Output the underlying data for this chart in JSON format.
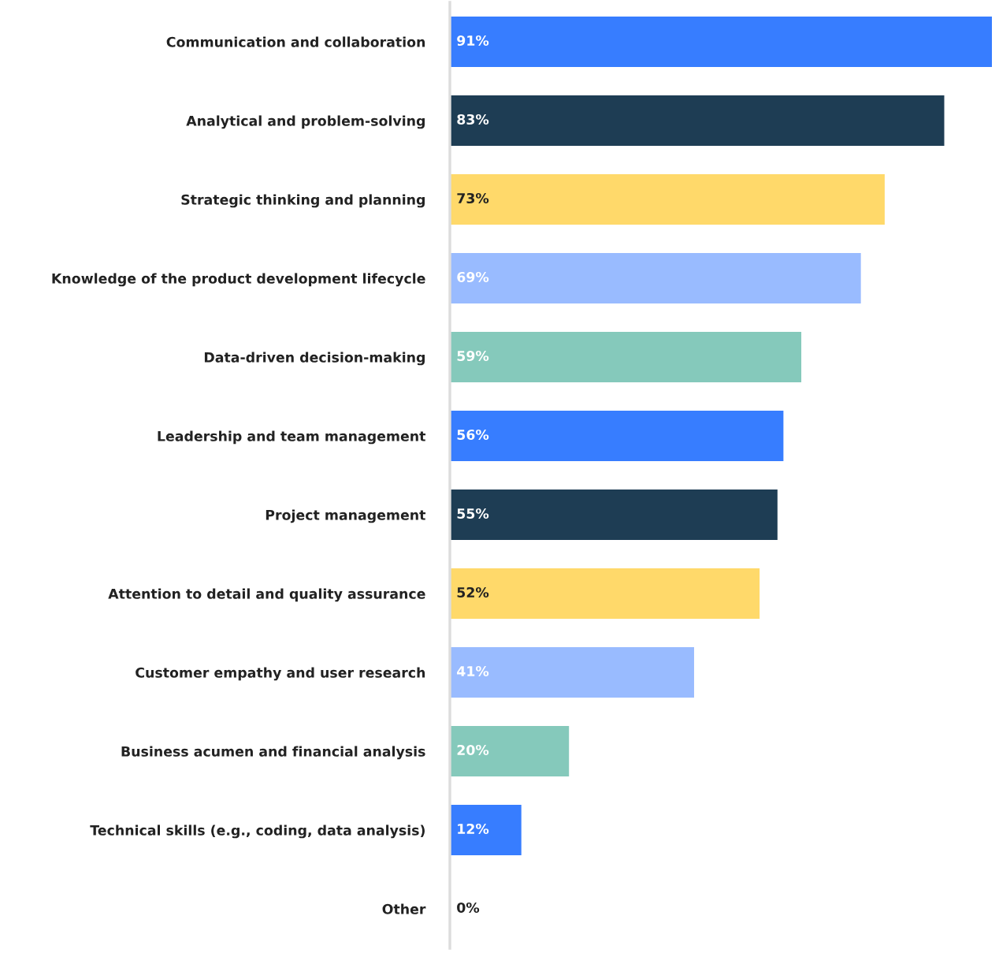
{
  "chart_data": {
    "type": "bar",
    "orientation": "horizontal",
    "data_labels": true,
    "grid": false,
    "legend": false,
    "categories": [
      "Communication and collaboration",
      "Analytical and problem-solving",
      "Strategic thinking and planning",
      "Knowledge of the product development lifecycle",
      "Data-driven decision-making",
      "Leadership and team management",
      "Project management",
      "Attention to detail and quality assurance",
      "Customer empathy and user research",
      "Business acumen and financial analysis",
      "Technical skills (e.g., coding, data analysis)",
      "Other"
    ],
    "values": [
      91,
      83,
      73,
      69,
      59,
      56,
      55,
      52,
      41,
      20,
      12,
      0
    ],
    "value_labels": [
      "91%",
      "83%",
      "73%",
      "69%",
      "59%",
      "56%",
      "55%",
      "52%",
      "41%",
      "20%",
      "12%",
      "0%"
    ],
    "colors": [
      "#377dff",
      "#1e3d54",
      "#ffd96a",
      "#99bbff",
      "#85c9bb",
      "#377dff",
      "#1e3d54",
      "#ffd96a",
      "#99bbff",
      "#85c9bb",
      "#377dff",
      "#1e3d54"
    ]
  }
}
